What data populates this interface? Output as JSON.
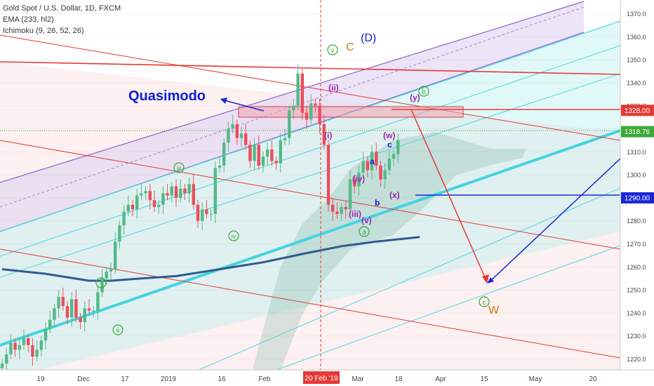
{
  "header": {
    "symbol_line": "Gold Spot / U.S. Dollar, 1D, FXCM",
    "ema_line": "EMA (233, hl2)",
    "ichimoku_line": "Ichimoku (9, 26, 52, 26)"
  },
  "colors": {
    "up_candle": "#53b987",
    "down_candle": "#eb4d5c",
    "ema": "#2f5b8f",
    "cyan_line": "#4dd9e6",
    "red_line": "#e53935",
    "blue_line": "#1a27d6",
    "purple_channel": "#8e63c9",
    "wave_green": "#3aaa35",
    "wave_purple": "#9c27b0",
    "wave_orange": "#c97a10",
    "navy_text": "#0d1fd6"
  },
  "chart_data": {
    "type": "candlestick",
    "title": "Gold Spot / U.S. Dollar, 1D, FXCM",
    "ylim": [
      1215,
      1377
    ],
    "y_ticks": [
      1220,
      1230,
      1240,
      1250,
      1260,
      1270,
      1280,
      1290,
      1300,
      1310,
      1320,
      1330,
      1340,
      1350,
      1360,
      1370
    ],
    "x_ticks": [
      "19",
      "Dec",
      "17",
      "2019",
      "16",
      "Feb",
      "Mar",
      "18",
      "Apr",
      "15",
      "May",
      "20"
    ],
    "highlighted_date": "20 Feb '19",
    "price_labels": [
      {
        "value": 1328.0,
        "text": "1328.00",
        "color": "#e53935"
      },
      {
        "value": 1318.76,
        "text": "1318.76",
        "color": "#3aaa35"
      },
      {
        "value": 1290.0,
        "text": "1290.00",
        "color": "#1a27d6"
      }
    ],
    "closes": [
      1218,
      1222,
      1227,
      1224,
      1226,
      1229,
      1226,
      1221,
      1224,
      1228,
      1233,
      1237,
      1242,
      1247,
      1243,
      1238,
      1246,
      1238,
      1236,
      1242,
      1241,
      1241,
      1249,
      1255,
      1258,
      1259,
      1271,
      1278,
      1284,
      1287,
      1285,
      1291,
      1292,
      1293,
      1289,
      1286,
      1287,
      1292,
      1291,
      1295,
      1290,
      1294,
      1292,
      1296,
      1287,
      1280,
      1285,
      1283,
      1283,
      1303,
      1304,
      1314,
      1320,
      1322,
      1316,
      1318,
      1313,
      1306,
      1313,
      1304,
      1308,
      1311,
      1306,
      1305,
      1315,
      1316,
      1328,
      1330,
      1344,
      1327,
      1324,
      1331,
      1330,
      1322,
      1313,
      1287,
      1284,
      1283,
      1286,
      1285,
      1298,
      1295,
      1301,
      1306,
      1302,
      1310,
      1304,
      1298,
      1302,
      1307,
      1309,
      1315
    ],
    "ema_233": [
      {
        "x": 0,
        "y": 1259
      },
      {
        "x": 10,
        "y": 1257
      },
      {
        "x": 20,
        "y": 1254
      },
      {
        "x": 25,
        "y": 1254
      },
      {
        "x": 32,
        "y": 1255
      },
      {
        "x": 40,
        "y": 1256
      },
      {
        "x": 50,
        "y": 1259
      },
      {
        "x": 60,
        "y": 1262
      },
      {
        "x": 70,
        "y": 1266
      },
      {
        "x": 78,
        "y": 1269
      },
      {
        "x": 86,
        "y": 1271
      },
      {
        "x": 96,
        "y": 1273
      }
    ],
    "annotations": [
      {
        "text": "Quasimodo",
        "color": "#0d1fd6"
      },
      {
        "text": "C",
        "color": "#c97a10"
      },
      {
        "text": "(D)",
        "color": "#0d1fd6"
      },
      {
        "text": "W",
        "color": "#c97a10"
      }
    ],
    "wave_labels": {
      "circled_green": [
        "i",
        "ii",
        "iii",
        "iv",
        "v",
        "a",
        "b",
        "c"
      ],
      "purple": [
        "(i)",
        "(ii)",
        "(iii)",
        "(iv)",
        "(v)",
        "(w)",
        "(x)",
        "(y)"
      ],
      "navy": [
        "a",
        "b",
        "c"
      ]
    }
  }
}
